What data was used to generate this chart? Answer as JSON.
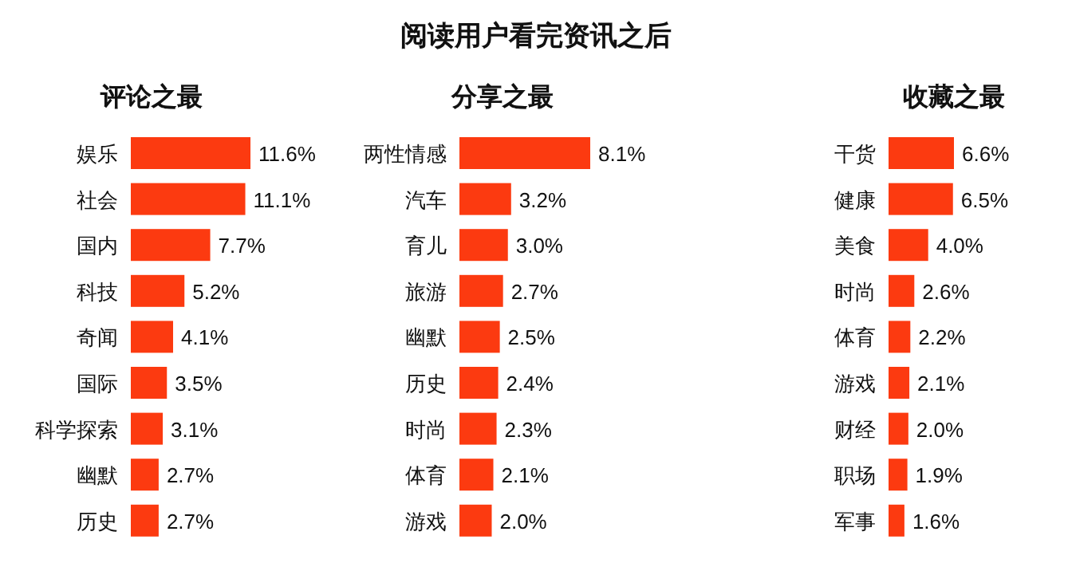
{
  "chart_data": [
    {
      "type": "bar",
      "orientation": "horizontal",
      "title": "评论之最",
      "annotations": [
        "阅读用户看完资讯之后"
      ],
      "color": "#fc3a10",
      "categories": [
        "娱乐",
        "社会",
        "国内",
        "科技",
        "奇闻",
        "国际",
        "科学探索",
        "幽默",
        "历史"
      ],
      "values": [
        11.6,
        11.1,
        7.7,
        5.2,
        4.1,
        3.5,
        3.1,
        2.7,
        2.7
      ],
      "value_labels": [
        "11.6%",
        "11.1%",
        "7.7%",
        "5.2%",
        "4.1%",
        "3.5%",
        "3.1%",
        "2.7%",
        "2.7%"
      ]
    },
    {
      "type": "bar",
      "orientation": "horizontal",
      "title": "分享之最",
      "color": "#fc3a10",
      "categories": [
        "两性情感",
        "汽车",
        "育儿",
        "旅游",
        "幽默",
        "历史",
        "时尚",
        "体育",
        "游戏"
      ],
      "values": [
        8.1,
        3.2,
        3.0,
        2.7,
        2.5,
        2.4,
        2.3,
        2.1,
        2.0
      ],
      "value_labels": [
        "8.1%",
        "3.2%",
        "3.0%",
        "2.7%",
        "2.5%",
        "2.4%",
        "2.3%",
        "2.1%",
        "2.0%"
      ]
    },
    {
      "type": "bar",
      "orientation": "horizontal",
      "title": "收藏之最",
      "color": "#fc3a10",
      "categories": [
        "干货",
        "健康",
        "美食",
        "时尚",
        "体育",
        "游戏",
        "财经",
        "职场",
        "军事"
      ],
      "values": [
        6.6,
        6.5,
        4.0,
        2.6,
        2.2,
        2.1,
        2.0,
        1.9,
        1.6
      ],
      "value_labels": [
        "6.6%",
        "6.5%",
        "4.0%",
        "2.6%",
        "2.2%",
        "2.1%",
        "2.0%",
        "1.9%",
        "1.6%"
      ]
    }
  ]
}
